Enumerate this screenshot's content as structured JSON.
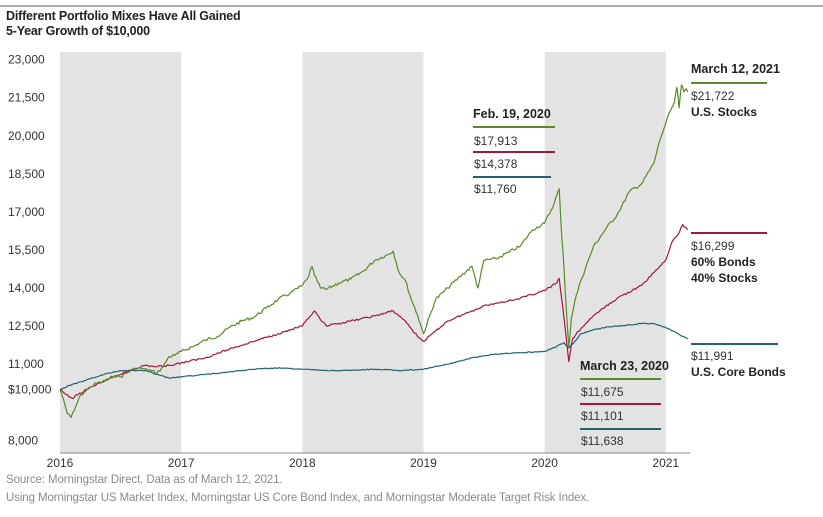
{
  "title": "Different Portfolio Mixes Have All Gained",
  "subtitle": "5-Year Growth of $10,000",
  "footnotes": [
    "Source: Morningstar Direct. Data as of March 12, 2021.",
    "Using Morningstar US Market Index, Morningstar US Core Bond Index, and Morningstar Moderate Target Risk Index."
  ],
  "colors": {
    "stocks": "#5a8a2a",
    "balanced": "#a3183e",
    "bonds": "#1f6570",
    "shade": "#e3e3e3"
  },
  "chart_data": {
    "type": "line",
    "title": "Different Portfolio Mixes Have All Gained",
    "subtitle": "5-Year Growth of $10,000",
    "xlim": [
      2016,
      2021.2
    ],
    "ylim": [
      7500,
      23300
    ],
    "yticks": [
      "23,000",
      "21,500",
      "20,000",
      "18,500",
      "17,000",
      "15,500",
      "14,000",
      "12,500",
      "11,000",
      "$10,000",
      "8,000"
    ],
    "ytick_values": [
      23000,
      21500,
      20000,
      18500,
      17000,
      15500,
      14000,
      12500,
      11000,
      10000,
      8000
    ],
    "xticks": [
      "2016",
      "2017",
      "2018",
      "2019",
      "2020",
      "2021"
    ],
    "xtick_values": [
      2016,
      2017,
      2018,
      2019,
      2020,
      2021
    ],
    "shaded_years": [
      [
        2016,
        2017
      ],
      [
        2018,
        2019
      ],
      [
        2020,
        2021
      ]
    ],
    "grid": false,
    "series": [
      {
        "name": "U.S. Stocks",
        "color": "#5a8a2a",
        "x": [
          2016.0,
          2016.03,
          2016.06,
          2016.09,
          2016.12,
          2016.16,
          2016.2,
          2016.25,
          2016.3,
          2016.35,
          2016.4,
          2016.45,
          2016.5,
          2016.55,
          2016.6,
          2016.65,
          2016.7,
          2016.75,
          2016.8,
          2016.85,
          2016.9,
          2016.95,
          2017.0,
          2017.1,
          2017.2,
          2017.3,
          2017.4,
          2017.5,
          2017.6,
          2017.7,
          2017.8,
          2017.9,
          2018.0,
          2018.04,
          2018.08,
          2018.1,
          2018.15,
          2018.2,
          2018.3,
          2018.4,
          2018.5,
          2018.6,
          2018.7,
          2018.75,
          2018.8,
          2018.85,
          2018.9,
          2018.95,
          2019.0,
          2019.1,
          2019.2,
          2019.3,
          2019.4,
          2019.45,
          2019.5,
          2019.6,
          2019.7,
          2019.8,
          2019.9,
          2020.0,
          2020.08,
          2020.12,
          2020.14,
          2020.16,
          2020.18,
          2020.2,
          2020.22,
          2020.25,
          2020.3,
          2020.4,
          2020.5,
          2020.6,
          2020.7,
          2020.8,
          2020.9,
          2020.95,
          2021.0,
          2021.04,
          2021.07,
          2021.09,
          2021.1,
          2021.11,
          2021.13,
          2021.15,
          2021.17,
          2021.18
        ],
        "values": [
          10000,
          9600,
          9050,
          8900,
          9200,
          9700,
          9900,
          10100,
          10250,
          10300,
          10400,
          10550,
          10500,
          10650,
          10800,
          10850,
          10800,
          10750,
          10650,
          10900,
          11300,
          11350,
          11500,
          11700,
          11950,
          12100,
          12450,
          12700,
          12850,
          13200,
          13550,
          13800,
          14100,
          14350,
          14850,
          14500,
          14000,
          13950,
          14200,
          14350,
          14650,
          15100,
          15300,
          15450,
          14600,
          14300,
          13550,
          12950,
          12200,
          13550,
          14000,
          14450,
          14850,
          14000,
          15100,
          15150,
          15400,
          15650,
          16300,
          16550,
          17350,
          17913,
          16100,
          14800,
          13100,
          11675,
          12800,
          13500,
          14300,
          15600,
          16300,
          16900,
          17800,
          18100,
          18900,
          19800,
          20500,
          21000,
          21300,
          21900,
          21600,
          21100,
          22000,
          21722,
          21850,
          21722
        ]
      },
      {
        "name": "60% Bonds 40% Stocks",
        "color": "#a3183e",
        "x": [
          2016.0,
          2016.05,
          2016.1,
          2016.15,
          2016.2,
          2016.3,
          2016.4,
          2016.5,
          2016.6,
          2016.7,
          2016.8,
          2016.9,
          2017.0,
          2017.2,
          2017.4,
          2017.6,
          2017.8,
          2018.0,
          2018.05,
          2018.1,
          2018.15,
          2018.2,
          2018.4,
          2018.6,
          2018.75,
          2018.85,
          2018.95,
          2019.0,
          2019.2,
          2019.4,
          2019.5,
          2019.6,
          2019.8,
          2020.0,
          2020.1,
          2020.12,
          2020.14,
          2020.17,
          2020.2,
          2020.23,
          2020.3,
          2020.4,
          2020.6,
          2020.8,
          2020.9,
          2021.0,
          2021.05,
          2021.1,
          2021.14,
          2021.18
        ],
        "values": [
          10000,
          9800,
          9650,
          9800,
          9950,
          10200,
          10400,
          10600,
          10800,
          10950,
          10900,
          10950,
          11050,
          11250,
          11600,
          11900,
          12200,
          12500,
          12800,
          13100,
          12750,
          12500,
          12700,
          12900,
          13100,
          12700,
          12100,
          11900,
          12700,
          13100,
          13300,
          13400,
          13600,
          13900,
          14200,
          14378,
          13600,
          12400,
          11101,
          12000,
          12400,
          12900,
          13600,
          14100,
          14600,
          15100,
          15800,
          16100,
          16500,
          16299
        ]
      },
      {
        "name": "U.S. Core Bonds",
        "color": "#1f6570",
        "x": [
          2016.0,
          2016.1,
          2016.2,
          2016.3,
          2016.4,
          2016.5,
          2016.6,
          2016.7,
          2016.8,
          2016.9,
          2017.0,
          2017.2,
          2017.4,
          2017.6,
          2017.8,
          2018.0,
          2018.2,
          2018.4,
          2018.6,
          2018.8,
          2019.0,
          2019.2,
          2019.4,
          2019.6,
          2019.8,
          2020.0,
          2020.1,
          2020.12,
          2020.16,
          2020.2,
          2020.25,
          2020.3,
          2020.4,
          2020.5,
          2020.6,
          2020.7,
          2020.8,
          2020.9,
          2021.0,
          2021.1,
          2021.18
        ],
        "values": [
          10000,
          10200,
          10350,
          10500,
          10650,
          10750,
          10750,
          10750,
          10600,
          10450,
          10500,
          10600,
          10700,
          10800,
          10850,
          10800,
          10750,
          10750,
          10800,
          10750,
          10800,
          11000,
          11250,
          11400,
          11450,
          11500,
          11700,
          11760,
          11850,
          11638,
          11900,
          12200,
          12350,
          12450,
          12500,
          12550,
          12600,
          12600,
          12450,
          12200,
          11991
        ]
      }
    ],
    "annotations": [
      {
        "label": "Feb. 19, 2020",
        "values": [
          "$17,913",
          "$14,378",
          "$11,760"
        ]
      },
      {
        "label": "March 23, 2020",
        "values": [
          "$11,675",
          "$11,101",
          "$11,638"
        ]
      },
      {
        "label": "March 12, 2021",
        "values": [
          "$21,722"
        ]
      },
      {
        "label": "",
        "values": [
          "$16,299"
        ]
      },
      {
        "label": "",
        "values": [
          "$11,991"
        ]
      }
    ],
    "end_labels": {
      "stocks": "U.S. Stocks",
      "balanced_line1": "60% Bonds",
      "balanced_line2": "40% Stocks",
      "bonds": "U.S. Core Bonds"
    }
  }
}
